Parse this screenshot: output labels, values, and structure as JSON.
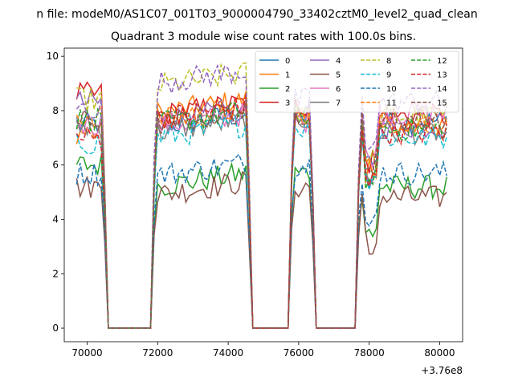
{
  "figure": {
    "suptitle": "n file: modeM0/AS1C07_001T03_9000004790_33402cztM0_level2_quad_clean",
    "offset_label": "+3.76e8"
  },
  "chart_data": {
    "type": "line",
    "title": "Quadrant 3 module wise count rates with 100.0s bins.",
    "xlabel": "",
    "ylabel": "",
    "xlim": [
      69350,
      80650
    ],
    "ylim": [
      -0.5,
      10.3
    ],
    "x_offset": 376000000,
    "grid": false,
    "legend_placement": "top-right",
    "legend_columns": 4,
    "xticks": [
      70000,
      72000,
      74000,
      76000,
      78000,
      80000
    ],
    "xtick_labels": [
      "70000",
      "72000",
      "74000",
      "76000",
      "78000",
      "80000"
    ],
    "yticks": [
      0,
      2,
      4,
      6,
      8,
      10
    ],
    "ytick_labels": [
      "0",
      "2",
      "4",
      "6",
      "8",
      "10"
    ],
    "segments": [
      {
        "x_start": 69700,
        "x_end": 70500
      },
      {
        "x_start": 71900,
        "x_end": 74600
      },
      {
        "x_start": 75800,
        "x_end": 76400
      },
      {
        "x_start": 77700,
        "x_end": 80200
      }
    ],
    "zero_gaps": [
      {
        "x_start": 70600,
        "x_end": 71800
      },
      {
        "x_start": 74700,
        "x_end": 75700
      },
      {
        "x_start": 76500,
        "x_end": 77600
      }
    ],
    "series": [
      {
        "name": "0",
        "color": "#1f77b4",
        "dashed": false,
        "levels": [
          7.5,
          7.4,
          7.8,
          7.6
        ]
      },
      {
        "name": "1",
        "color": "#ff7f0e",
        "dashed": false,
        "levels": [
          7.2,
          7.9,
          8.0,
          7.4
        ]
      },
      {
        "name": "2",
        "color": "#2ca02c",
        "dashed": false,
        "levels": [
          6.0,
          5.2,
          5.7,
          5.2
        ]
      },
      {
        "name": "3",
        "color": "#d62728",
        "dashed": false,
        "levels": [
          8.6,
          7.8,
          8.2,
          7.8
        ]
      },
      {
        "name": "4",
        "color": "#9467bd",
        "dashed": false,
        "levels": [
          8.3,
          7.6,
          8.0,
          7.4
        ]
      },
      {
        "name": "5",
        "color": "#8c564b",
        "dashed": false,
        "levels": [
          5.2,
          4.9,
          5.2,
          4.8
        ]
      },
      {
        "name": "6",
        "color": "#e377c2",
        "dashed": false,
        "levels": [
          7.5,
          7.4,
          7.6,
          7.9
        ]
      },
      {
        "name": "7",
        "color": "#7f7f7f",
        "dashed": false,
        "levels": [
          7.4,
          7.2,
          7.7,
          7.2
        ]
      },
      {
        "name": "8",
        "color": "#bcbd22",
        "dashed": true,
        "levels": [
          8.4,
          8.9,
          8.0,
          7.8
        ]
      },
      {
        "name": "9",
        "color": "#17becf",
        "dashed": true,
        "levels": [
          6.8,
          7.0,
          7.4,
          7.0
        ]
      },
      {
        "name": "10",
        "color": "#1f77b4",
        "dashed": true,
        "levels": [
          5.7,
          5.6,
          6.0,
          5.7
        ]
      },
      {
        "name": "11",
        "color": "#ff7f0e",
        "dashed": true,
        "levels": [
          7.8,
          7.6,
          7.9,
          7.6
        ]
      },
      {
        "name": "12",
        "color": "#2ca02c",
        "dashed": true,
        "levels": [
          7.7,
          7.5,
          7.8,
          7.3
        ]
      },
      {
        "name": "13",
        "color": "#d62728",
        "dashed": true,
        "levels": [
          7.0,
          7.7,
          7.8,
          7.2
        ]
      },
      {
        "name": "14",
        "color": "#9467bd",
        "dashed": true,
        "levels": [
          8.1,
          9.0,
          8.4,
          8.3
        ]
      },
      {
        "name": "15",
        "color": "#8c564b",
        "dashed": true,
        "levels": [
          7.6,
          7.5,
          7.9,
          7.7
        ]
      }
    ]
  }
}
